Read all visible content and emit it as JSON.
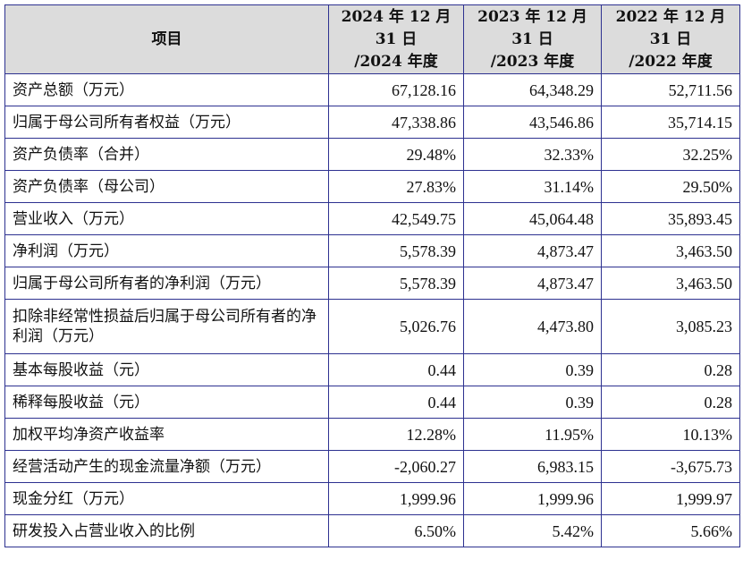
{
  "table": {
    "header": {
      "item": "项目",
      "columns": [
        [
          "2024 年 12 月",
          "31 日",
          "/2024 年度"
        ],
        [
          "2023 年 12 月",
          "31 日",
          "/2023 年度"
        ],
        [
          "2022 年 12 月",
          "31 日",
          "/2022 年度"
        ]
      ]
    },
    "rows": [
      {
        "label": "资产总额（万元）",
        "values": [
          "67,128.16",
          "64,348.29",
          "52,711.56"
        ]
      },
      {
        "label": "归属于母公司所有者权益（万元）",
        "values": [
          "47,338.86",
          "43,546.86",
          "35,714.15"
        ]
      },
      {
        "label": "资产负债率（合并）",
        "values": [
          "29.48%",
          "32.33%",
          "32.25%"
        ]
      },
      {
        "label": "资产负债率（母公司）",
        "values": [
          "27.83%",
          "31.14%",
          "29.50%"
        ]
      },
      {
        "label": "营业收入（万元）",
        "values": [
          "42,549.75",
          "45,064.48",
          "35,893.45"
        ]
      },
      {
        "label": "净利润（万元）",
        "values": [
          "5,578.39",
          "4,873.47",
          "3,463.50"
        ]
      },
      {
        "label": "归属于母公司所有者的净利润（万元）",
        "values": [
          "5,578.39",
          "4,873.47",
          "3,463.50"
        ]
      },
      {
        "label": "扣除非经常性损益后归属于母公司所有者的净利润（万元）",
        "values": [
          "5,026.76",
          "4,473.80",
          "3,085.23"
        ]
      },
      {
        "label": "基本每股收益（元）",
        "values": [
          "0.44",
          "0.39",
          "0.28"
        ]
      },
      {
        "label": "稀释每股收益（元）",
        "values": [
          "0.44",
          "0.39",
          "0.28"
        ]
      },
      {
        "label": "加权平均净资产收益率",
        "values": [
          "12.28%",
          "11.95%",
          "10.13%"
        ]
      },
      {
        "label": "经营活动产生的现金流量净额（万元）",
        "values": [
          "-2,060.27",
          "6,983.15",
          "-3,675.73"
        ]
      },
      {
        "label": "现金分红（万元）",
        "values": [
          "1,999.96",
          "1,999.96",
          "1,999.97"
        ]
      },
      {
        "label": "研发投入占营业收入的比例",
        "values": [
          "6.50%",
          "5.42%",
          "5.66%"
        ]
      }
    ]
  }
}
